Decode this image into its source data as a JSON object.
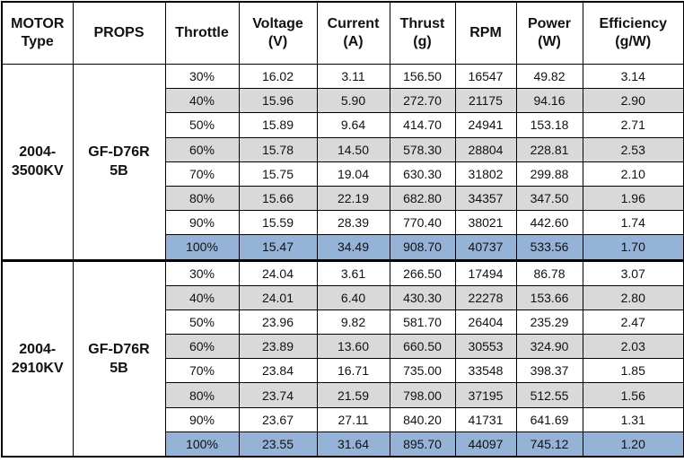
{
  "table": {
    "header": [
      [
        "MOTOR",
        "Type"
      ],
      [
        "PROPS"
      ],
      [
        "Throttle"
      ],
      [
        "Voltage",
        "(V)"
      ],
      [
        "Current",
        "(A)"
      ],
      [
        "Thrust",
        "(g)"
      ],
      [
        "RPM"
      ],
      [
        "Power",
        "(W)"
      ],
      [
        "Efficiency",
        "(g/W)"
      ]
    ],
    "groups": [
      {
        "motor": [
          "2004-",
          "3500KV"
        ],
        "props": [
          "GF-D76R",
          "5B"
        ],
        "rows": [
          [
            "30%",
            "16.02",
            "3.11",
            "156.50",
            "16547",
            "49.82",
            "3.14"
          ],
          [
            "40%",
            "15.96",
            "5.90",
            "272.70",
            "21175",
            "94.16",
            "2.90"
          ],
          [
            "50%",
            "15.89",
            "9.64",
            "414.70",
            "24941",
            "153.18",
            "2.71"
          ],
          [
            "60%",
            "15.78",
            "14.50",
            "578.30",
            "28804",
            "228.81",
            "2.53"
          ],
          [
            "70%",
            "15.75",
            "19.04",
            "630.30",
            "31802",
            "299.88",
            "2.10"
          ],
          [
            "80%",
            "15.66",
            "22.19",
            "682.80",
            "34357",
            "347.50",
            "1.96"
          ],
          [
            "90%",
            "15.59",
            "28.39",
            "770.40",
            "38021",
            "442.60",
            "1.74"
          ],
          [
            "100%",
            "15.47",
            "34.49",
            "908.70",
            "40737",
            "533.56",
            "1.70"
          ]
        ]
      },
      {
        "motor": [
          "2004-",
          "2910KV"
        ],
        "props": [
          "GF-D76R",
          "5B"
        ],
        "rows": [
          [
            "30%",
            "24.04",
            "3.61",
            "266.50",
            "17494",
            "86.78",
            "3.07"
          ],
          [
            "40%",
            "24.01",
            "6.40",
            "430.30",
            "22278",
            "153.66",
            "2.80"
          ],
          [
            "50%",
            "23.96",
            "9.82",
            "581.70",
            "26404",
            "235.29",
            "2.47"
          ],
          [
            "60%",
            "23.89",
            "13.60",
            "660.50",
            "30553",
            "324.90",
            "2.03"
          ],
          [
            "70%",
            "23.84",
            "16.71",
            "735.00",
            "33548",
            "398.37",
            "1.85"
          ],
          [
            "80%",
            "23.74",
            "21.59",
            "798.00",
            "37195",
            "512.55",
            "1.56"
          ],
          [
            "90%",
            "23.67",
            "27.11",
            "840.20",
            "41731",
            "641.69",
            "1.31"
          ],
          [
            "100%",
            "23.55",
            "31.64",
            "895.70",
            "44097",
            "745.12",
            "1.20"
          ]
        ]
      }
    ]
  }
}
